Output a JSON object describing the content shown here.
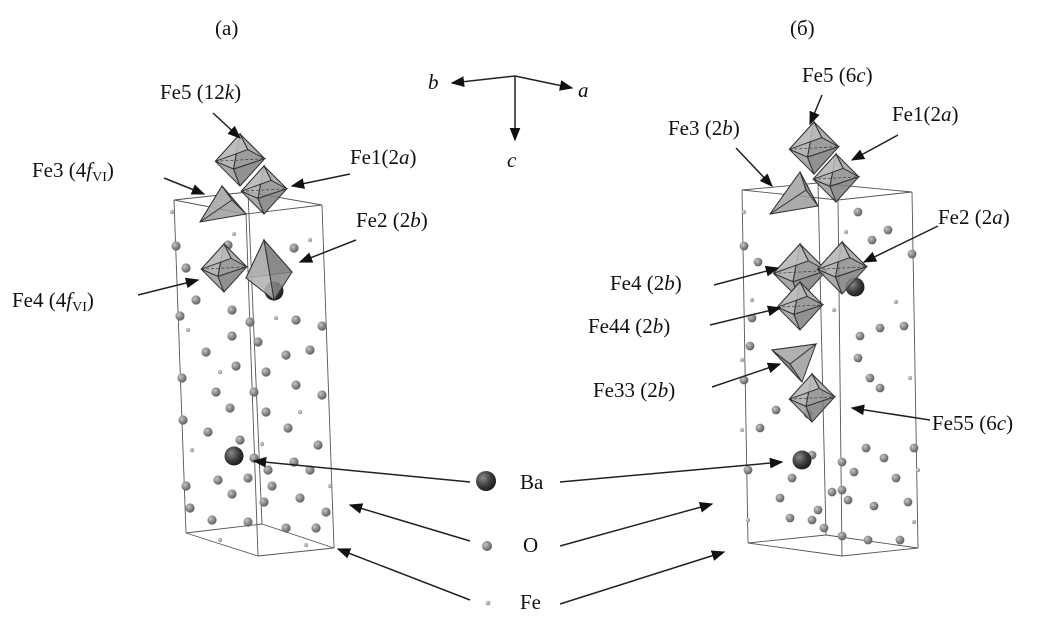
{
  "panels": [
    {
      "id": "a",
      "title": "(a)",
      "labels": [
        {
          "site": "Fe5",
          "pos": "12",
          "pos_italic": "k"
        },
        {
          "site": "Fe1",
          "pos": "2",
          "pos_italic": "a"
        },
        {
          "site": "Fe3",
          "pos": "4",
          "pos_italic": "f",
          "sub": "VI"
        },
        {
          "site": "Fe2",
          "pos": "2",
          "pos_italic": "b"
        },
        {
          "site": "Fe4",
          "pos": "4",
          "pos_italic": "f",
          "sub": "VI"
        }
      ]
    },
    {
      "id": "b",
      "title": "(б)",
      "labels": [
        {
          "site": "Fe5",
          "pos": "6",
          "pos_italic": "c"
        },
        {
          "site": "Fe3",
          "pos": "2",
          "pos_italic": "b"
        },
        {
          "site": "Fe1",
          "pos": "2",
          "pos_italic": "a"
        },
        {
          "site": "Fe2",
          "pos": "2",
          "pos_italic": "a"
        },
        {
          "site": "Fe4",
          "pos": "2",
          "pos_italic": "b"
        },
        {
          "site": "Fe44",
          "pos": "2",
          "pos_italic": "b"
        },
        {
          "site": "Fe33",
          "pos": "2",
          "pos_italic": "b"
        },
        {
          "site": "Fe55",
          "pos": "6",
          "pos_italic": "c"
        }
      ]
    }
  ],
  "axes": {
    "a": "a",
    "b": "b",
    "c": "c"
  },
  "legend": [
    {
      "name": "Ba",
      "label": "Ba"
    },
    {
      "name": "O",
      "label": "O"
    },
    {
      "name": "Fe",
      "label": "Fe"
    }
  ],
  "colors": {
    "atom": "#7a7a7a",
    "polyhedron": "#9a9a9a",
    "line": "#222222",
    "ba": "#2e2e2e"
  }
}
